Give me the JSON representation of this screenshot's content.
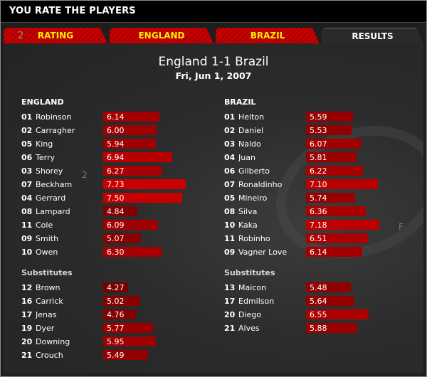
{
  "window": {
    "title": "YOU RATE THE PLAYERS"
  },
  "tabs": [
    {
      "label": "RATING",
      "prefix": "2"
    },
    {
      "label": "ENGLAND"
    },
    {
      "label": "BRAZIL"
    },
    {
      "label": "RESULTS",
      "active": true
    }
  ],
  "match": {
    "title": "England 1-1 Brazil",
    "date": "Fri, Jun 1, 2007"
  },
  "colors": {
    "bar": "#b00000",
    "tab": "#c90000",
    "tab_text": "#ffee00",
    "background": "#1e1e1e"
  },
  "teams": [
    {
      "name": "ENGLAND",
      "subs_label": "Substitutes",
      "starters": [
        {
          "num": "01",
          "name": "Robinson",
          "rating": "6.14"
        },
        {
          "num": "02",
          "name": "Carragher",
          "rating": "6.00"
        },
        {
          "num": "05",
          "name": "King",
          "rating": "5.94"
        },
        {
          "num": "06",
          "name": "Terry",
          "rating": "6.94"
        },
        {
          "num": "03",
          "name": "Shorey",
          "rating": "6.27"
        },
        {
          "num": "07",
          "name": "Beckham",
          "rating": "7.73"
        },
        {
          "num": "04",
          "name": "Gerrard",
          "rating": "7.50"
        },
        {
          "num": "08",
          "name": "Lampard",
          "rating": "4.84"
        },
        {
          "num": "11",
          "name": "Cole",
          "rating": "6.09"
        },
        {
          "num": "09",
          "name": "Smith",
          "rating": "5.07"
        },
        {
          "num": "10",
          "name": "Owen",
          "rating": "6.30"
        }
      ],
      "subs": [
        {
          "num": "12",
          "name": "Brown",
          "rating": "4.27"
        },
        {
          "num": "16",
          "name": "Carrick",
          "rating": "5.02"
        },
        {
          "num": "17",
          "name": "Jenas",
          "rating": "4.76"
        },
        {
          "num": "19",
          "name": "Dyer",
          "rating": "5.77"
        },
        {
          "num": "20",
          "name": "Downing",
          "rating": "5.95"
        },
        {
          "num": "21",
          "name": "Crouch",
          "rating": "5.49"
        }
      ]
    },
    {
      "name": "BRAZIL",
      "subs_label": "Substitutes",
      "starters": [
        {
          "num": "01",
          "name": "Helton",
          "rating": "5.59"
        },
        {
          "num": "02",
          "name": "Daniel",
          "rating": "5.53"
        },
        {
          "num": "03",
          "name": "Naldo",
          "rating": "6.07"
        },
        {
          "num": "04",
          "name": "Juan",
          "rating": "5.81"
        },
        {
          "num": "06",
          "name": "Gilberto",
          "rating": "6.22"
        },
        {
          "num": "07",
          "name": "Ronaldinho",
          "rating": "7.10"
        },
        {
          "num": "05",
          "name": "Mineiro",
          "rating": "5.74"
        },
        {
          "num": "08",
          "name": "Silva",
          "rating": "6.36"
        },
        {
          "num": "10",
          "name": "Kaka",
          "rating": "7.18"
        },
        {
          "num": "11",
          "name": "Robinho",
          "rating": "6.51"
        },
        {
          "num": "09",
          "name": "Vagner Love",
          "rating": "6.14"
        }
      ],
      "subs": [
        {
          "num": "13",
          "name": "Maicon",
          "rating": "5.48"
        },
        {
          "num": "17",
          "name": "Edmilson",
          "rating": "5.64"
        },
        {
          "num": "20",
          "name": "Diego",
          "rating": "6.55"
        },
        {
          "num": "21",
          "name": "Alves",
          "rating": "5.88"
        }
      ]
    }
  ]
}
